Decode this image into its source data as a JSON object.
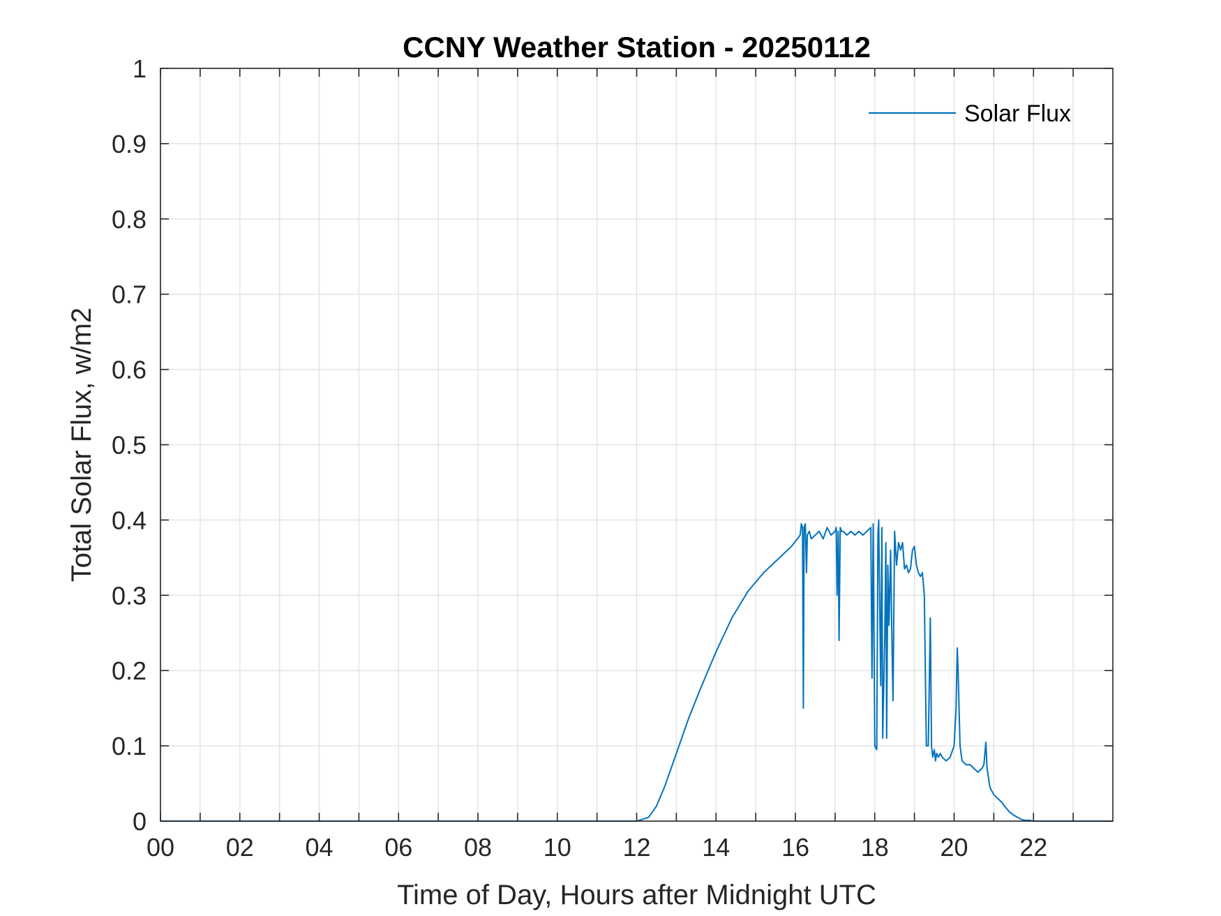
{
  "chart_data": {
    "type": "line",
    "title": "CCNY Weather Station - 20250112",
    "xlabel": "Time of Day, Hours after Midnight UTC",
    "ylabel": "Total Solar Flux, w/m2",
    "xlim": [
      0,
      24
    ],
    "ylim": [
      0,
      1
    ],
    "grid": true,
    "x_ticks": [
      0,
      2,
      4,
      6,
      8,
      10,
      12,
      14,
      16,
      18,
      20,
      22
    ],
    "x_tick_labels": [
      "00",
      "02",
      "04",
      "06",
      "08",
      "10",
      "12",
      "14",
      "16",
      "18",
      "20",
      "22"
    ],
    "x_minor_ticks": [
      1,
      3,
      5,
      7,
      9,
      11,
      13,
      15,
      17,
      19,
      21,
      23
    ],
    "y_ticks": [
      0,
      0.1,
      0.2,
      0.3,
      0.4,
      0.5,
      0.6,
      0.7,
      0.8,
      0.9,
      1
    ],
    "y_tick_labels": [
      "0",
      "0.1",
      "0.2",
      "0.3",
      "0.4",
      "0.5",
      "0.6",
      "0.7",
      "0.8",
      "0.9",
      "1"
    ],
    "legend": {
      "entries": [
        "Solar Flux"
      ],
      "placement": "top-right"
    },
    "series": [
      {
        "name": "Solar Flux",
        "color": "#0072BD",
        "x": [
          0,
          12.0,
          12.3,
          12.5,
          12.7,
          13.0,
          13.3,
          13.6,
          14.0,
          14.4,
          14.8,
          15.2,
          15.6,
          15.9,
          16.05,
          16.12,
          16.15,
          16.18,
          16.2,
          16.22,
          16.25,
          16.28,
          16.3,
          16.35,
          16.4,
          16.5,
          16.6,
          16.7,
          16.8,
          16.9,
          17.0,
          17.03,
          17.05,
          17.08,
          17.1,
          17.13,
          17.16,
          17.2,
          17.3,
          17.4,
          17.5,
          17.6,
          17.7,
          17.8,
          17.9,
          17.93,
          17.96,
          18.0,
          18.05,
          18.08,
          18.1,
          18.15,
          18.18,
          18.2,
          18.25,
          18.28,
          18.3,
          18.33,
          18.36,
          18.4,
          18.43,
          18.46,
          18.5,
          18.55,
          18.6,
          18.65,
          18.7,
          18.75,
          18.8,
          18.85,
          18.9,
          18.95,
          19.0,
          19.05,
          19.1,
          19.15,
          19.2,
          19.25,
          19.3,
          19.35,
          19.4,
          19.43,
          19.46,
          19.5,
          19.53,
          19.56,
          19.6,
          19.65,
          19.7,
          19.8,
          19.9,
          20.0,
          20.05,
          20.08,
          20.1,
          20.15,
          20.2,
          20.3,
          20.4,
          20.5,
          20.6,
          20.7,
          20.75,
          20.8,
          20.83,
          20.86,
          20.9,
          21.0,
          21.1,
          21.2,
          21.3,
          21.4,
          21.5,
          21.6,
          21.7,
          21.8,
          21.9,
          22.0,
          24.0
        ],
        "y": [
          0,
          0,
          0.005,
          0.02,
          0.045,
          0.09,
          0.135,
          0.175,
          0.225,
          0.27,
          0.305,
          0.33,
          0.35,
          0.365,
          0.375,
          0.38,
          0.395,
          0.39,
          0.15,
          0.39,
          0.395,
          0.33,
          0.38,
          0.385,
          0.375,
          0.38,
          0.385,
          0.375,
          0.39,
          0.38,
          0.385,
          0.39,
          0.3,
          0.385,
          0.24,
          0.39,
          0.385,
          0.385,
          0.38,
          0.385,
          0.38,
          0.385,
          0.38,
          0.385,
          0.39,
          0.19,
          0.395,
          0.1,
          0.095,
          0.38,
          0.4,
          0.18,
          0.39,
          0.11,
          0.24,
          0.37,
          0.11,
          0.34,
          0.26,
          0.36,
          0.25,
          0.16,
          0.385,
          0.34,
          0.37,
          0.36,
          0.37,
          0.335,
          0.34,
          0.33,
          0.335,
          0.36,
          0.365,
          0.34,
          0.33,
          0.325,
          0.33,
          0.3,
          0.1,
          0.1,
          0.27,
          0.1,
          0.085,
          0.095,
          0.08,
          0.09,
          0.085,
          0.09,
          0.085,
          0.08,
          0.085,
          0.1,
          0.15,
          0.23,
          0.2,
          0.1,
          0.08,
          0.075,
          0.075,
          0.07,
          0.065,
          0.07,
          0.075,
          0.105,
          0.07,
          0.06,
          0.045,
          0.035,
          0.03,
          0.025,
          0.018,
          0.012,
          0.008,
          0.005,
          0.002,
          0.001,
          0.001,
          0,
          0
        ]
      }
    ]
  }
}
